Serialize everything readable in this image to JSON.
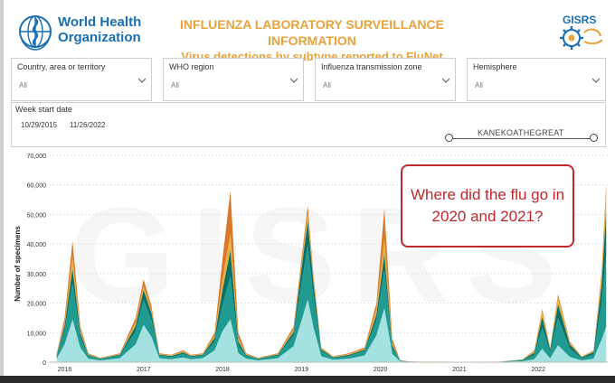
{
  "header": {
    "org_line1": "World Health",
    "org_line2": "Organization",
    "title": "INFLUENZA LABORATORY SURVEILLANCE INFORMATION",
    "subtitle": "Virus detections by subtype reported to FluNet",
    "partner_logo_text": "GISRS"
  },
  "filters": [
    {
      "label": "Country, area or territory",
      "value": "All"
    },
    {
      "label": "WHO region",
      "value": "All"
    },
    {
      "label": "Influenza transmission zone",
      "value": "All"
    },
    {
      "label": "Hemisphere",
      "value": "All"
    }
  ],
  "date_filter": {
    "label": "Week start date",
    "start": "10/29/2015",
    "end": "11/26/2022",
    "overlay_text": "KANEKOATHEGREAT"
  },
  "callout": {
    "text": "Where did the flu go in 2020 and 2021?"
  },
  "chart_data": {
    "type": "area",
    "title": "Virus detections by subtype reported to FluNet",
    "xlabel": "",
    "ylabel": "Number of specimens",
    "ylim": [
      0,
      70000
    ],
    "y_ticks": [
      "0",
      "10,000",
      "20,000",
      "30,000",
      "40,000",
      "50,000",
      "60,000",
      "70,000"
    ],
    "x_ticks": [
      "2016",
      "2017",
      "2018",
      "2019",
      "2020",
      "2021",
      "2022"
    ],
    "watermark": "GISRS",
    "grid": true,
    "colors": {
      "light_teal": "#a4e1e1",
      "teal": "#1f9b92",
      "dark_teal": "#0b7069",
      "gold": "#e9b23a",
      "orange": "#d9772a"
    },
    "series_order": [
      "light_teal",
      "teal",
      "dark_teal",
      "gold",
      "orange"
    ],
    "x": [
      2015.9,
      2016.0,
      2016.1,
      2016.2,
      2016.3,
      2016.45,
      2016.7,
      2016.9,
      2017.0,
      2017.1,
      2017.2,
      2017.35,
      2017.5,
      2017.6,
      2017.75,
      2017.9,
      2018.0,
      2018.1,
      2018.2,
      2018.3,
      2018.45,
      2018.7,
      2018.9,
      2019.0,
      2019.08,
      2019.15,
      2019.25,
      2019.4,
      2019.6,
      2019.8,
      2019.95,
      2020.05,
      2020.15,
      2020.25,
      2020.35,
      2020.5,
      2020.8,
      2021.0,
      2021.5,
      2021.8,
      2021.95,
      2022.05,
      2022.15,
      2022.25,
      2022.4,
      2022.55,
      2022.7,
      2022.8,
      2022.86
    ],
    "total": [
      3000,
      15000,
      41000,
      12000,
      3000,
      1500,
      3000,
      15000,
      28000,
      19000,
      3000,
      2500,
      4000,
      2500,
      3000,
      10000,
      35000,
      58000,
      10000,
      3000,
      1500,
      3000,
      12000,
      35000,
      53000,
      30000,
      5000,
      2000,
      3000,
      5000,
      20000,
      52000,
      8000,
      700,
      300,
      200,
      200,
      150,
      200,
      1000,
      4000,
      18000,
      5000,
      23000,
      7000,
      2000,
      4000,
      30000,
      60000
    ],
    "shares": {
      "light_teal": [
        0.4,
        0.4,
        0.35,
        0.4,
        0.4,
        0.4,
        0.45,
        0.4,
        0.45,
        0.45,
        0.45,
        0.4,
        0.4,
        0.4,
        0.45,
        0.4,
        0.3,
        0.25,
        0.3,
        0.4,
        0.4,
        0.45,
        0.45,
        0.4,
        0.4,
        0.4,
        0.4,
        0.4,
        0.4,
        0.45,
        0.45,
        0.35,
        0.35,
        0.4,
        0.4,
        0.4,
        0.4,
        0.4,
        0.4,
        0.3,
        0.25,
        0.25,
        0.25,
        0.25,
        0.25,
        0.3,
        0.3,
        0.25,
        0.2
      ],
      "teal": [
        0.3,
        0.3,
        0.3,
        0.3,
        0.3,
        0.3,
        0.3,
        0.3,
        0.3,
        0.3,
        0.3,
        0.3,
        0.3,
        0.3,
        0.3,
        0.3,
        0.25,
        0.25,
        0.25,
        0.3,
        0.3,
        0.3,
        0.3,
        0.35,
        0.35,
        0.35,
        0.35,
        0.3,
        0.3,
        0.3,
        0.25,
        0.25,
        0.25,
        0.3,
        0.3,
        0.3,
        0.3,
        0.3,
        0.3,
        0.35,
        0.35,
        0.4,
        0.4,
        0.4,
        0.4,
        0.35,
        0.35,
        0.4,
        0.4
      ],
      "dark_teal": [
        0.12,
        0.12,
        0.12,
        0.12,
        0.12,
        0.12,
        0.1,
        0.12,
        0.12,
        0.12,
        0.1,
        0.12,
        0.12,
        0.12,
        0.1,
        0.12,
        0.15,
        0.15,
        0.15,
        0.12,
        0.12,
        0.1,
        0.1,
        0.15,
        0.15,
        0.15,
        0.12,
        0.12,
        0.12,
        0.1,
        0.1,
        0.1,
        0.12,
        0.1,
        0.1,
        0.1,
        0.1,
        0.1,
        0.1,
        0.15,
        0.2,
        0.2,
        0.2,
        0.2,
        0.2,
        0.2,
        0.2,
        0.2,
        0.25
      ],
      "gold": [
        0.08,
        0.08,
        0.1,
        0.08,
        0.08,
        0.08,
        0.07,
        0.08,
        0.05,
        0.05,
        0.05,
        0.08,
        0.08,
        0.08,
        0.07,
        0.08,
        0.1,
        0.1,
        0.1,
        0.08,
        0.08,
        0.07,
        0.07,
        0.05,
        0.05,
        0.05,
        0.08,
        0.08,
        0.08,
        0.07,
        0.1,
        0.1,
        0.1,
        0.1,
        0.1,
        0.1,
        0.1,
        0.1,
        0.1,
        0.1,
        0.1,
        0.1,
        0.1,
        0.1,
        0.1,
        0.1,
        0.1,
        0.1,
        0.1
      ],
      "orange": [
        0.1,
        0.1,
        0.13,
        0.1,
        0.1,
        0.1,
        0.08,
        0.1,
        0.08,
        0.08,
        0.1,
        0.1,
        0.1,
        0.1,
        0.08,
        0.1,
        0.2,
        0.25,
        0.2,
        0.1,
        0.1,
        0.08,
        0.08,
        0.05,
        0.05,
        0.05,
        0.05,
        0.1,
        0.1,
        0.08,
        0.1,
        0.2,
        0.18,
        0.1,
        0.1,
        0.1,
        0.1,
        0.1,
        0.1,
        0.1,
        0.1,
        0.05,
        0.05,
        0.05,
        0.05,
        0.05,
        0.05,
        0.05,
        0.05
      ]
    }
  }
}
